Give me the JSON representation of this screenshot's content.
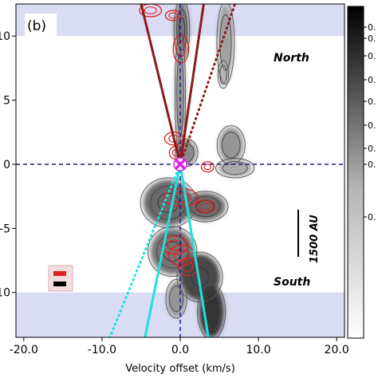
{
  "chart_data": {
    "type": "heatmap",
    "panel_label": "(b)",
    "xlabel": "Velocity offset (km/s)",
    "ylabel": "",
    "xlim": [
      -21,
      21
    ],
    "ylim": [
      -13.5,
      12.5
    ],
    "xticks": [
      -20,
      -10,
      0,
      10,
      20
    ],
    "xtick_labels": [
      "-20.0",
      "-10.0",
      "0.0",
      "10.0",
      "20.0"
    ],
    "yticks": [
      10,
      5,
      0,
      -5,
      -10
    ],
    "ytick_labels": [
      "10",
      "5",
      "0",
      "-5",
      "-10"
    ],
    "colorbar_tick_labels": [
      "0.",
      "0.",
      "0.",
      "0.",
      "0.",
      "0.",
      "0.",
      "0.",
      "0."
    ],
    "colors": {
      "guide": "#1a1a8c",
      "red_contour": "#e02020",
      "maroon": "#8b1a1a",
      "cyan": "#20e0e0",
      "marker": "#e020e0",
      "band": "#d9dcf2"
    },
    "bands_y": [
      [
        10,
        12.5
      ],
      [
        -13.5,
        -10
      ]
    ],
    "region_labels": {
      "north": "North",
      "south": "South"
    },
    "scale_bar": "1500 AU",
    "source_position": {
      "x": 0,
      "y": 0
    },
    "guides": {
      "vertical_x": 0,
      "horizontal_y": 0
    },
    "lines": {
      "maroon_solid": [
        {
          "x": [
            0,
            -5.0
          ],
          "y": [
            0,
            12.5
          ]
        },
        {
          "x": [
            0,
            3.0
          ],
          "y": [
            0,
            12.5
          ]
        }
      ],
      "maroon_dotted": [
        {
          "x": [
            0,
            7.0
          ],
          "y": [
            0,
            12.5
          ]
        }
      ],
      "cyan_solid": [
        {
          "x": [
            0,
            -4.5
          ],
          "y": [
            0,
            -13.5
          ]
        },
        {
          "x": [
            0,
            3.6
          ],
          "y": [
            0,
            -13.5
          ]
        }
      ],
      "cyan_dotted": [
        {
          "x": [
            0,
            -9.0
          ],
          "y": [
            0,
            -13.5
          ]
        }
      ]
    },
    "emission_blobs": [
      {
        "x": 0.2,
        "y": 10.5,
        "rx": 0.9,
        "ry": 2.2,
        "level": 0.55
      },
      {
        "x": 0.0,
        "y": 5.5,
        "rx": 0.6,
        "ry": 4.5,
        "level": 0.45
      },
      {
        "x": 5.8,
        "y": 9.5,
        "rx": 1.0,
        "ry": 3.0,
        "level": 0.35
      },
      {
        "x": 5.5,
        "y": 7.0,
        "rx": 0.6,
        "ry": 1.0,
        "level": 0.25
      },
      {
        "x": 6.5,
        "y": 1.5,
        "rx": 1.6,
        "ry": 1.4,
        "level": 0.4
      },
      {
        "x": 7.0,
        "y": -0.3,
        "rx": 2.2,
        "ry": 0.7,
        "level": 0.3
      },
      {
        "x": 0.8,
        "y": 0.9,
        "rx": 1.3,
        "ry": 1.0,
        "level": 0.45
      },
      {
        "x": -1.5,
        "y": -3.0,
        "rx": 3.2,
        "ry": 1.8,
        "level": 0.6
      },
      {
        "x": 3.2,
        "y": -3.3,
        "rx": 2.6,
        "ry": 1.1,
        "level": 0.6
      },
      {
        "x": -1.0,
        "y": -6.8,
        "rx": 2.8,
        "ry": 1.8,
        "level": 0.55
      },
      {
        "x": 2.5,
        "y": -8.8,
        "rx": 2.6,
        "ry": 1.8,
        "level": 0.75
      },
      {
        "x": 4.0,
        "y": -11.5,
        "rx": 1.6,
        "ry": 2.0,
        "level": 0.85
      },
      {
        "x": -0.5,
        "y": -10.5,
        "rx": 1.2,
        "ry": 1.4,
        "level": 0.4
      }
    ],
    "red_contours": [
      {
        "x": -3.8,
        "y": 12.0,
        "rx": 1.4,
        "ry": 0.5
      },
      {
        "x": -0.9,
        "y": 11.6,
        "rx": 1.0,
        "ry": 0.4
      },
      {
        "x": 0.1,
        "y": 9.0,
        "rx": 1.0,
        "ry": 1.1
      },
      {
        "x": -0.8,
        "y": 2.0,
        "rx": 1.2,
        "ry": 0.5
      },
      {
        "x": -0.5,
        "y": 0.9,
        "rx": 0.9,
        "ry": 0.5
      },
      {
        "x": 3.5,
        "y": -0.2,
        "rx": 0.8,
        "ry": 0.4
      },
      {
        "x": 0.1,
        "y": -2.6,
        "rx": 2.2,
        "ry": 0.7
      },
      {
        "x": 3.2,
        "y": -3.3,
        "rx": 1.3,
        "ry": 0.5
      },
      {
        "x": -0.7,
        "y": -6.3,
        "rx": 1.7,
        "ry": 0.7
      },
      {
        "x": 0.2,
        "y": -7.1,
        "rx": 1.7,
        "ry": 0.8
      },
      {
        "x": 1.0,
        "y": -8.0,
        "rx": 1.2,
        "ry": 0.7
      }
    ]
  }
}
